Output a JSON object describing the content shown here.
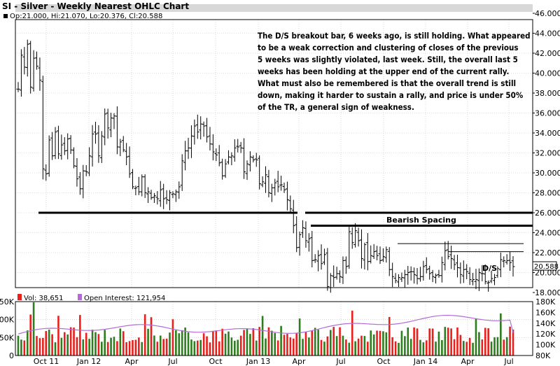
{
  "chart_data": {
    "type": "ohlc",
    "title": "SI - Silver - Weekly Nearest OHLC Chart",
    "info_line": "Op:21.000, Hi:21.070, Lo:20.376, Cl:20.588",
    "last_price_label": "20.588",
    "price_axis": {
      "ticks": [
        "46.000",
        "44.000",
        "42.000",
        "40.000",
        "38.000",
        "36.000",
        "34.000",
        "32.000",
        "30.000",
        "28.000",
        "26.000",
        "24.000",
        "22.000",
        "20.000",
        "18.000"
      ],
      "ylim": [
        18,
        46
      ]
    },
    "x_ticks": [
      "Oct 11",
      "Jan 12",
      "Apr",
      "Jul",
      "Oct",
      "Jan 13",
      "Apr",
      "Jul",
      "Oct",
      "Jan 14",
      "Apr",
      "Jul"
    ],
    "annotation": [
      "The D/S breakout bar, 6 weeks ago, is still holding.  What appeared",
      "to be a weak correction and clustering of closes of the previous",
      "5 weeks was slightly violated, last week.  Still, the overall last 5",
      "weeks has been holding at the upper end of the current rally.",
      "What must also be remembered is that the overall trend is still",
      "down, making it harder to sustain a rally, and price is under 50%",
      "of the TR, a general sign of weakness."
    ],
    "bearish_spacing_label": "Bearish Spacing",
    "ds_label": "D/S",
    "lines": [
      {
        "name": "support-26",
        "y": 26.0
      },
      {
        "name": "bearish-spacing-line",
        "y": 24.7
      },
      {
        "name": "resistance-22-9",
        "y": 22.9
      },
      {
        "name": "resistance-22-1",
        "y": 22.1
      }
    ],
    "weekly_close": [
      38.4,
      41.8,
      40.6,
      42.9,
      38.6,
      41.5,
      40.7,
      39.3,
      30.4,
      29.9,
      33.3,
      31.7,
      34.1,
      31.9,
      32.8,
      32.2,
      33.4,
      32.3,
      30.7,
      29.4,
      28.4,
      30.2,
      30.1,
      31.7,
      33.9,
      33.9,
      31.7,
      33.7,
      35.9,
      34.5,
      35.5,
      35.7,
      32.6,
      33.1,
      32.3,
      31.6,
      29.9,
      28.6,
      28.5,
      28.1,
      29.6,
      28.0,
      28.1,
      27.5,
      27.7,
      27.4,
      28.3,
      27.4,
      27.3,
      28.0,
      27.9,
      28.1,
      28.6,
      31.2,
      32.2,
      32.5,
      33.7,
      34.7,
      34.1,
      34.9,
      34.7,
      33.6,
      32.9,
      32.1,
      31.8,
      31.0,
      29.7,
      30.9,
      31.6,
      31.7,
      32.5,
      32.6,
      32.5,
      30.1,
      30.9,
      31.6,
      31.3,
      31.3,
      28.9,
      29.1,
      29.8,
      28.0,
      28.5,
      29.0,
      28.6,
      28.8,
      28.3,
      27.3,
      26.4,
      24.7,
      22.5,
      23.8,
      24.5,
      23.2,
      23.4,
      21.2,
      21.3,
      21.7,
      20.9,
      21.8,
      18.6,
      19.7,
      19.5,
      19.9,
      19.6,
      21.2,
      20.6,
      24.1,
      23.0,
      24.2,
      23.2,
      21.4,
      22.8,
      21.1,
      21.7,
      22.1,
      21.7,
      21.2,
      21.6,
      22.3,
      20.3,
      19.6,
      19.2,
      19.5,
      19.5,
      19.8,
      20.0,
      20.1,
      19.8,
      19.4,
      19.6,
      20.6,
      20.3,
      19.9,
      19.6,
      19.7,
      19.7,
      21.0,
      22.2,
      21.6,
      21.4,
      20.8,
      20.5,
      19.8,
      20.3,
      20.1,
      19.3,
      19.3,
      19.3,
      20.0,
      19.9,
      19.1,
      19.0,
      19.4,
      19.5,
      20.4,
      21.3,
      21.2,
      21.2,
      21.0,
      20.6
    ],
    "volume_panel": {
      "legend": [
        "Vol: 38,651",
        "Open Interest: 121,954"
      ],
      "left_ticks": [
        "150K",
        "100K",
        "50K",
        "0"
      ],
      "right_ticks": [
        "180K",
        "160K",
        "140K",
        "120K",
        "100K",
        "80K"
      ]
    },
    "colors": {
      "bar": "#000000",
      "vol_up": "#2e7d1e",
      "vol_down": "#e8201c",
      "oi_line": "#b36bd6",
      "grid": "#c0c0c0",
      "frame": "#000000"
    }
  }
}
